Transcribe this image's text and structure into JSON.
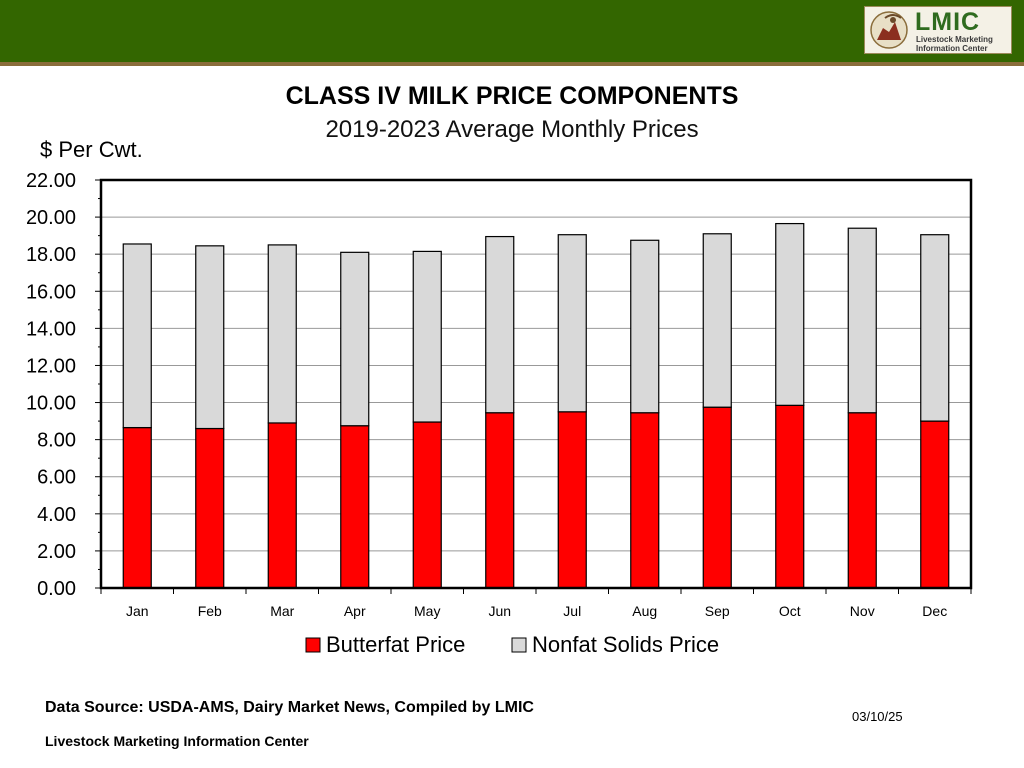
{
  "header": {
    "logo_text": "LMIC",
    "logo_sub1": "Livestock Marketing",
    "logo_sub2": "Information Center"
  },
  "chart_data": {
    "type": "bar",
    "stacked": true,
    "title": "CLASS IV MILK PRICE COMPONENTS",
    "subtitle": "2019-2023 Average Monthly Prices",
    "ylabel": "$ Per Cwt.",
    "xlabel": "",
    "ylim": [
      0,
      22
    ],
    "yticks": [
      "0.00",
      "2.00",
      "4.00",
      "6.00",
      "8.00",
      "10.00",
      "12.00",
      "14.00",
      "16.00",
      "18.00",
      "20.00",
      "22.00"
    ],
    "grid": true,
    "categories": [
      "Jan",
      "Feb",
      "Mar",
      "Apr",
      "May",
      "Jun",
      "Jul",
      "Aug",
      "Sep",
      "Oct",
      "Nov",
      "Dec"
    ],
    "series": [
      {
        "name": "Butterfat Price",
        "color": "#ff0000",
        "values": [
          8.65,
          8.6,
          8.9,
          8.75,
          8.95,
          9.45,
          9.5,
          9.45,
          9.75,
          9.85,
          9.45,
          9.0
        ]
      },
      {
        "name": "Nonfat Solids Price",
        "color": "#d9d9d9",
        "values": [
          9.9,
          9.85,
          9.6,
          9.35,
          9.2,
          9.5,
          9.55,
          9.3,
          9.35,
          9.8,
          9.95,
          10.05
        ]
      }
    ],
    "legend_position": "bottom"
  },
  "footer": {
    "source": "Data Source:  USDA-AMS, Dairy Market News, Compiled by LMIC",
    "org": "Livestock Marketing Information Center",
    "date": "03/10/25"
  }
}
